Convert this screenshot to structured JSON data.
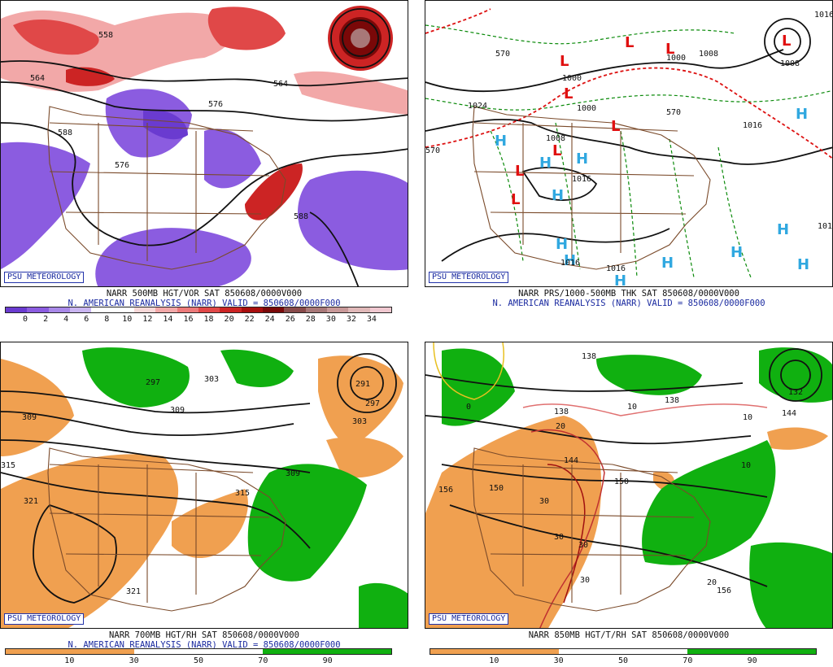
{
  "colors": {
    "accent": "#1a2aa0",
    "vor_pos": "#e04848",
    "vor_neg": "#7d5ad6",
    "rh_dry": "#f0a050",
    "rh_moist": "#10b010",
    "low_marker": "#e01010",
    "high_marker": "#30a8e0"
  },
  "panels": [
    {
      "badge": "PSU METEOROLOGY",
      "caption_line1": "NARR 500MB HGT/VOR SAT 850608/0000V000",
      "caption_line2": "N. AMERICAN REANALYSIS (NARR) VALID = 850608/0000F000",
      "colorbar": [
        "#6a3bd0",
        "#8b5ce0",
        "#a888e8",
        "#c9b5f0",
        "#ffffff",
        "#ffffff",
        "#f7d8d8",
        "#f2a8a8",
        "#ec7a7a",
        "#e04848",
        "#cc2424",
        "#a80e0e",
        "#7a0808",
        "#884a4a",
        "#a87878",
        "#c89898",
        "#e0b8b8",
        "#f0c8d0"
      ],
      "ticks": [
        "0",
        "2",
        "4",
        "6",
        "8",
        "10",
        "12",
        "14",
        "16",
        "18",
        "20",
        "22",
        "24",
        "26",
        "28",
        "30",
        "32",
        "34"
      ],
      "labels": [
        "564",
        "588",
        "576",
        "564",
        "558",
        "588",
        "576"
      ]
    },
    {
      "badge": "PSU METEOROLOGY",
      "caption_line1": "NARR PRS/1000-500MB THK SAT 850608/0000V000",
      "caption_line2": "N. AMERICAN REANALYSIS (NARR) VALID = 850608/0000F000",
      "labels": [
        "1000",
        "1008",
        "1008",
        "1000",
        "1000",
        "1024",
        "1016",
        "1008",
        "1016",
        "1016",
        "1016",
        "1016",
        "1016",
        "570",
        "570",
        "570"
      ]
    },
    {
      "badge": "PSU METEOROLOGY",
      "caption_line1": "NARR 700MB HGT/RH SAT 850608/0000V000",
      "caption_line2": "N. AMERICAN REANALYSIS (NARR) VALID = 850608/0000F000",
      "colorbar": [
        "#f0a050",
        "#f0a050",
        "#ffffff",
        "#ffffff",
        "#10b010",
        "#10b010"
      ],
      "ticks": [
        "10",
        "30",
        "50",
        "70",
        "90"
      ],
      "labels": [
        "309",
        "297",
        "291",
        "309",
        "303",
        "309",
        "315",
        "321",
        "321",
        "315",
        "297",
        "303"
      ]
    },
    {
      "badge": "PSU METEOROLOGY",
      "caption_line1": "NARR 850MB HGT/T/RH SAT 850608/0000V000",
      "caption_line2": "",
      "colorbar": [
        "#f0a050",
        "#f0a050",
        "#ffffff",
        "#ffffff",
        "#10b010",
        "#10b010"
      ],
      "ticks": [
        "10",
        "30",
        "50",
        "70",
        "90"
      ],
      "labels": [
        "138",
        "138",
        "144",
        "150",
        "150",
        "156",
        "132",
        "138",
        "144",
        "156",
        "0",
        "10",
        "10",
        "10",
        "20",
        "20",
        "30",
        "30",
        "30",
        "30"
      ]
    }
  ]
}
